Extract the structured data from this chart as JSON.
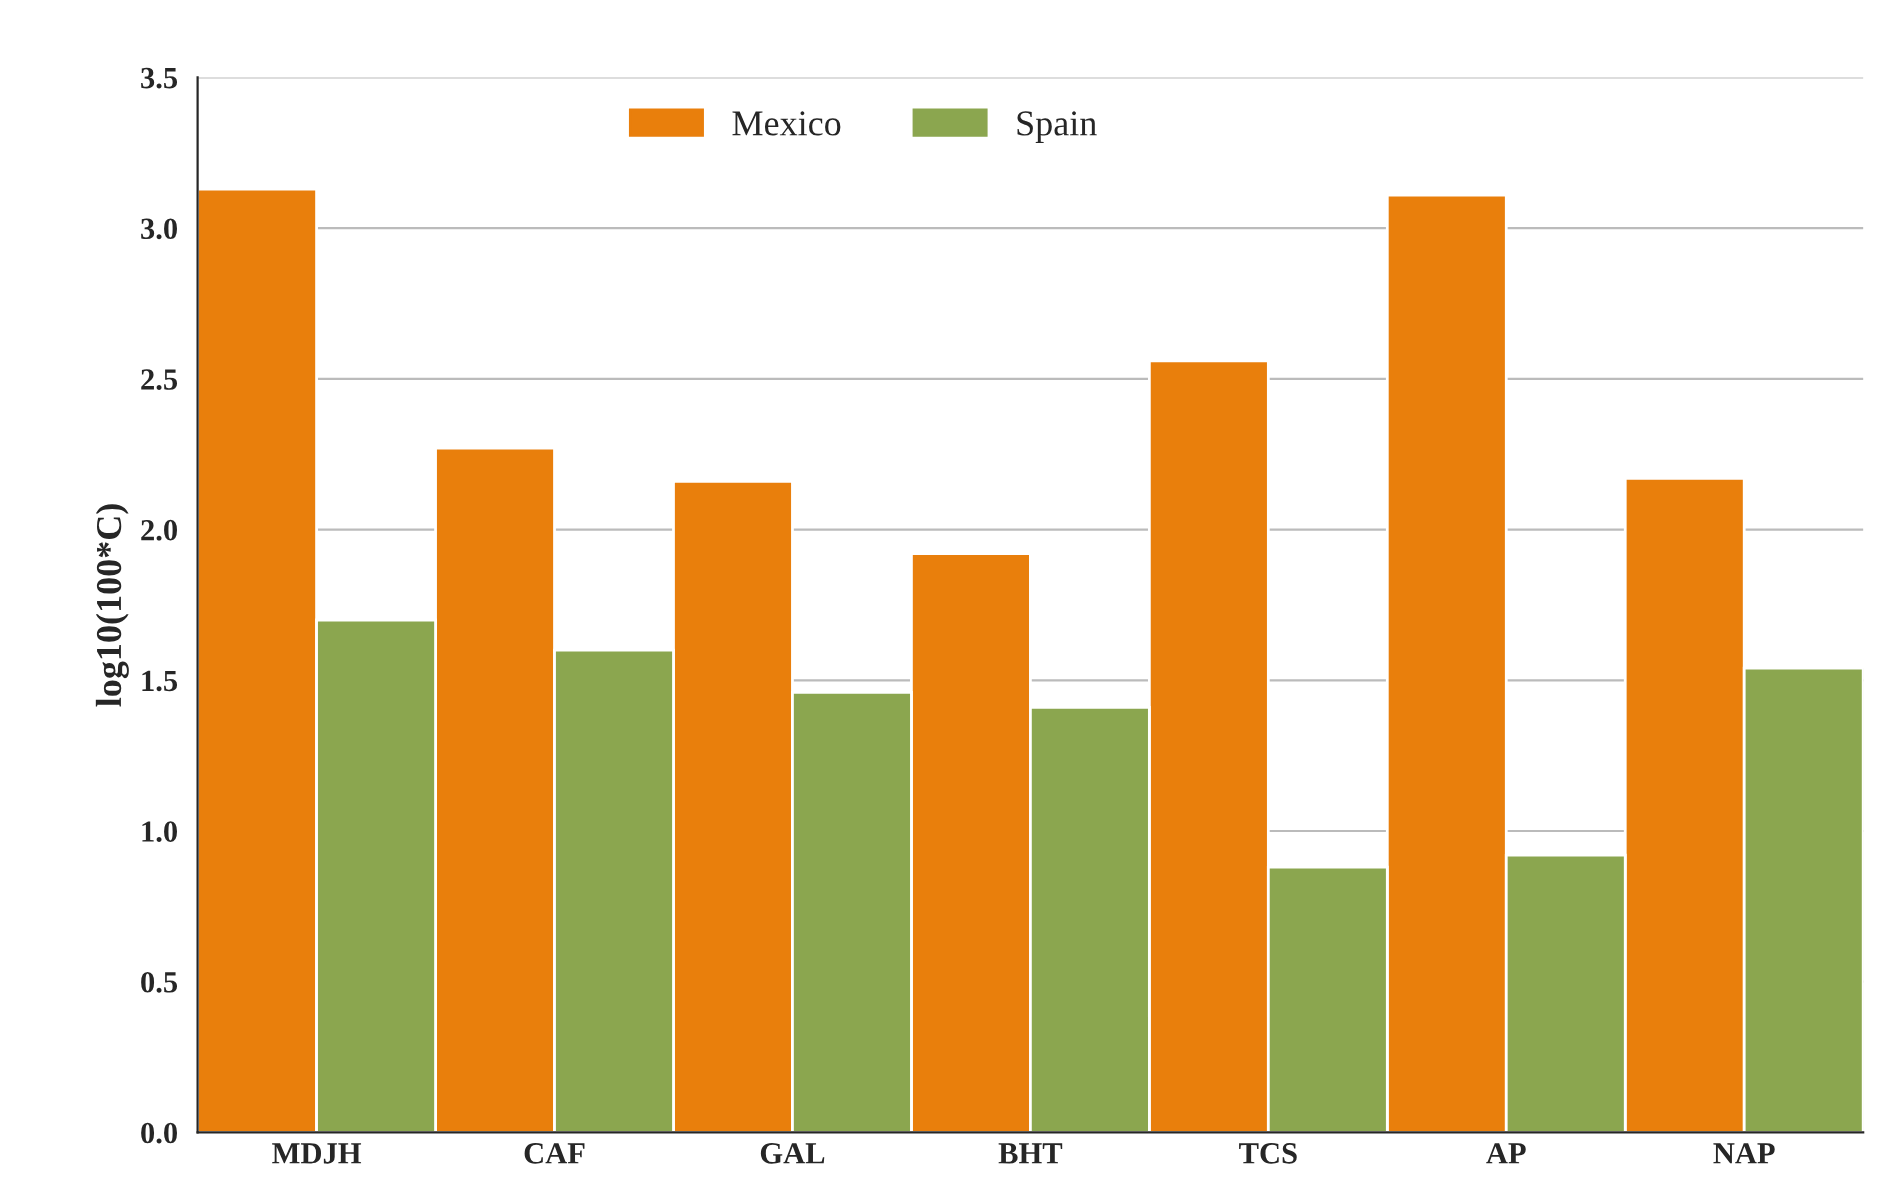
{
  "chart_data": {
    "type": "bar",
    "ylabel": "log10(100*C)",
    "categories": [
      "MDJH",
      "CAF",
      "GAL",
      "BHT",
      "TCS",
      "AP",
      "NAP"
    ],
    "series": [
      {
        "name": "Mexico",
        "color": "#e97f0c",
        "values": [
          3.13,
          2.27,
          2.16,
          1.92,
          2.56,
          3.11,
          2.17
        ]
      },
      {
        "name": "Spain",
        "color": "#8ba64f",
        "values": [
          1.7,
          1.6,
          1.46,
          1.41,
          0.88,
          0.92,
          1.54
        ]
      }
    ],
    "ylim": [
      0,
      3.5
    ],
    "yticks": [
      {
        "value": 0,
        "label": "0.0"
      },
      {
        "value": 0.5,
        "label": "0.5"
      },
      {
        "value": 1,
        "label": "1.0"
      },
      {
        "value": 1.5,
        "label": "1.5"
      },
      {
        "value": 2,
        "label": "2.0"
      },
      {
        "value": 2.5,
        "label": "2.5"
      },
      {
        "value": 3,
        "label": "3.0"
      },
      {
        "value": 3.5,
        "label": "3.5"
      }
    ],
    "grid": "y",
    "legend": "top"
  }
}
